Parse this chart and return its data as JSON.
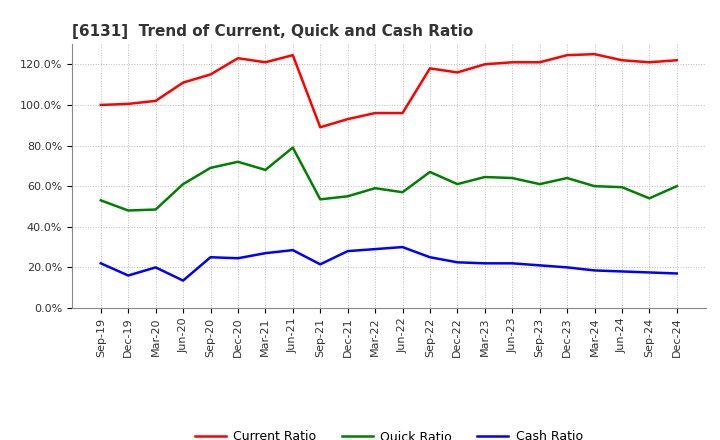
{
  "title": "[6131]  Trend of Current, Quick and Cash Ratio",
  "x_labels": [
    "Sep-19",
    "Dec-19",
    "Mar-20",
    "Jun-20",
    "Sep-20",
    "Dec-20",
    "Mar-21",
    "Jun-21",
    "Sep-21",
    "Dec-21",
    "Mar-22",
    "Jun-22",
    "Sep-22",
    "Dec-22",
    "Mar-23",
    "Jun-23",
    "Sep-23",
    "Dec-23",
    "Mar-24",
    "Jun-24",
    "Sep-24",
    "Dec-24"
  ],
  "current_ratio": [
    100.0,
    100.5,
    102.0,
    111.0,
    115.0,
    123.0,
    121.0,
    124.5,
    89.0,
    93.0,
    96.0,
    96.0,
    118.0,
    116.0,
    120.0,
    121.0,
    121.0,
    124.5,
    125.0,
    122.0,
    121.0,
    122.0
  ],
  "quick_ratio": [
    53.0,
    48.0,
    48.5,
    61.0,
    69.0,
    72.0,
    68.0,
    79.0,
    53.5,
    55.0,
    59.0,
    57.0,
    67.0,
    61.0,
    64.5,
    64.0,
    61.0,
    64.0,
    60.0,
    59.5,
    54.0,
    60.0
  ],
  "cash_ratio": [
    22.0,
    16.0,
    20.0,
    13.5,
    25.0,
    24.5,
    27.0,
    28.5,
    21.5,
    28.0,
    29.0,
    30.0,
    25.0,
    22.5,
    22.0,
    22.0,
    21.0,
    20.0,
    18.5,
    18.0,
    17.5,
    17.0
  ],
  "current_color": "#FF0000",
  "quick_color": "#008000",
  "cash_color": "#0000FF",
  "ylim": [
    0,
    130
  ],
  "yticks": [
    0,
    20,
    40,
    60,
    80,
    100,
    120
  ],
  "background_color": "#FFFFFF",
  "grid_color": "#AAAAAA",
  "title_color": "#333333",
  "title_fontsize": 11,
  "tick_fontsize": 8,
  "legend_fontsize": 9,
  "line_width": 1.8
}
